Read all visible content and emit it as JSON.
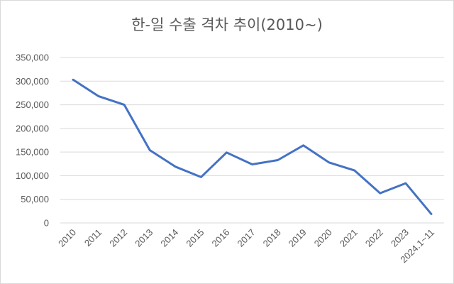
{
  "chart_data": {
    "type": "line",
    "title": "한-일 수출 격차 추이(2010~)",
    "xlabel": "",
    "ylabel": "",
    "ylim": [
      0,
      350000
    ],
    "yticks": [
      "0",
      "50,000",
      "100,000",
      "150,000",
      "200,000",
      "250,000",
      "300,000",
      "350,000"
    ],
    "grid": true,
    "legend": "none",
    "categories": [
      "2010",
      "2011",
      "2012",
      "2013",
      "2014",
      "2015",
      "2016",
      "2017",
      "2018",
      "2019",
      "2020",
      "2021",
      "2022",
      "2023",
      "2024.1~11"
    ],
    "series": [
      {
        "values": [
          303000,
          268000,
          250000,
          154000,
          119000,
          97000,
          149000,
          124000,
          133000,
          164000,
          128000,
          111000,
          63000,
          84000,
          19000
        ],
        "color": "#4472c4"
      }
    ]
  }
}
